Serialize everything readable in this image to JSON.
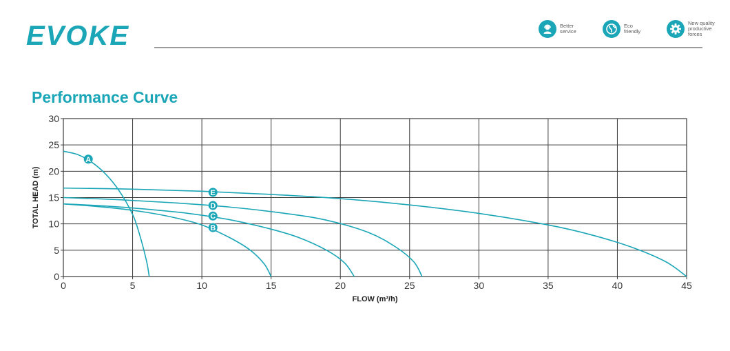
{
  "brand": {
    "logo": "EVOKE"
  },
  "badges": [
    {
      "icon": "headset-person-icon",
      "text": "Better\nservice"
    },
    {
      "icon": "globe-icon",
      "text": "Eco\nfriendly"
    },
    {
      "icon": "gear-icon",
      "text": "New quality\nproductive\nforces"
    }
  ],
  "section_title": "Performance Curve",
  "colors": {
    "accent": "#1aa6b7",
    "grid": "#3a3a3a"
  },
  "chart_data": {
    "type": "line",
    "xlabel": "FLOW (m³/h)",
    "ylabel": "TOTAL  HEAD (m)",
    "xlim": [
      0,
      45
    ],
    "ylim": [
      0,
      30
    ],
    "xticks": [
      0,
      5,
      10,
      15,
      20,
      25,
      30,
      35,
      40,
      45
    ],
    "yticks": [
      0,
      5,
      10,
      15,
      20,
      25,
      30
    ],
    "grid": true,
    "series": [
      {
        "name": "A",
        "x": [
          0,
          1,
          2,
          3,
          4,
          5,
          5.5,
          6,
          6.2
        ],
        "y": [
          23.8,
          23.2,
          21.8,
          19.6,
          16.4,
          11.8,
          8.0,
          3.0,
          0
        ],
        "label_at": [
          1.8,
          22.3
        ]
      },
      {
        "name": "B",
        "x": [
          0,
          2,
          4,
          6,
          8,
          10,
          12,
          13.5,
          14.5,
          15
        ],
        "y": [
          13.8,
          13.4,
          12.9,
          12.2,
          11.2,
          9.8,
          7.4,
          5.0,
          2.4,
          0
        ],
        "label_at": [
          10.8,
          9.3
        ]
      },
      {
        "name": "C",
        "x": [
          0,
          3,
          6,
          9,
          12,
          15,
          17,
          19,
          20.3,
          21
        ],
        "y": [
          13.8,
          13.4,
          12.8,
          12.0,
          10.8,
          9.0,
          7.4,
          5.0,
          2.6,
          0
        ],
        "label_at": [
          10.8,
          11.5
        ]
      },
      {
        "name": "D",
        "x": [
          0,
          4,
          8,
          12,
          16,
          19,
          22,
          24,
          25.3,
          25.9
        ],
        "y": [
          15.0,
          14.6,
          14.0,
          13.2,
          12.0,
          10.7,
          8.4,
          5.6,
          2.8,
          0
        ],
        "label_at": [
          10.8,
          13.5
        ]
      },
      {
        "name": "E",
        "x": [
          0,
          5,
          10,
          15,
          20,
          25,
          30,
          35,
          38,
          41,
          43.5,
          45
        ],
        "y": [
          16.8,
          16.6,
          16.2,
          15.6,
          14.8,
          13.6,
          12.0,
          9.8,
          8.0,
          5.6,
          2.8,
          0
        ],
        "label_at": [
          10.8,
          16.0
        ]
      }
    ]
  }
}
